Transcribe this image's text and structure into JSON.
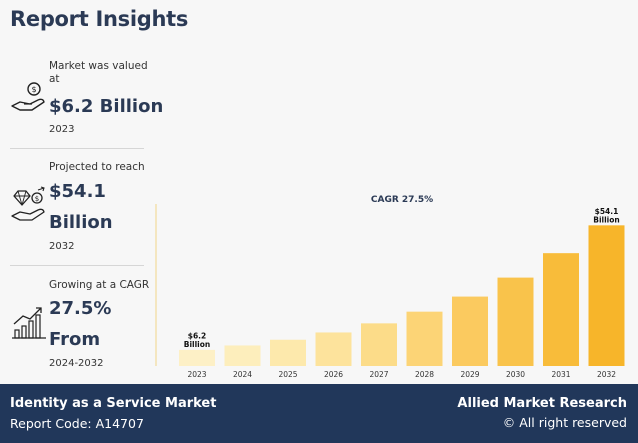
{
  "header": {
    "title": "Report Insights"
  },
  "stats": [
    {
      "label": "Market was valued at",
      "value": "$6.2 Billion",
      "year": "2023",
      "icon": "money-hand-icon"
    },
    {
      "label": "Projected to reach",
      "value": "$54.1 Billion",
      "year": "2032",
      "icon": "diamond-hand-icon"
    },
    {
      "label": "Growing at a CAGR",
      "value": "27.5% From",
      "year": "2024-2032",
      "icon": "growth-chart-icon"
    }
  ],
  "chart_data": {
    "type": "bar",
    "title": "CAGR 27.5%",
    "categories": [
      "2023",
      "2024",
      "2025",
      "2026",
      "2027",
      "2028",
      "2029",
      "2030",
      "2031",
      "2032"
    ],
    "values": [
      6.2,
      7.9,
      10.1,
      12.9,
      16.4,
      20.9,
      26.7,
      34.0,
      43.4,
      54.1
    ],
    "ylim": [
      0,
      60
    ],
    "data_labels": {
      "first": [
        "$6.2",
        "Billion"
      ],
      "last": [
        "$54.1",
        "Billion"
      ]
    },
    "colors": [
      "#fdf0c6",
      "#fdeebc",
      "#fde9ac",
      "#fde39c",
      "#fcdc89",
      "#fcd476",
      "#fbca5f",
      "#f9c34b",
      "#f8bc3a",
      "#f7b52a"
    ]
  },
  "footer": {
    "market_name": "Identity as a Service Market",
    "report_code": "Report Code: A14707",
    "brand": "Allied Market Research",
    "rights": "© All right reserved"
  }
}
